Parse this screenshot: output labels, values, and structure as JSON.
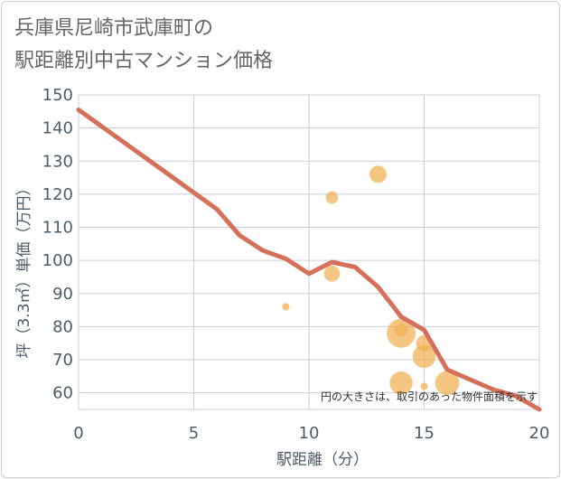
{
  "page": {
    "title_line1": "兵庫県尼崎市武庫町の",
    "title_line2": "駅距離別中古マンション価格"
  },
  "chart_data": {
    "type": "scatter",
    "title": "兵庫県尼崎市武庫町の駅距離別中古マンション価格",
    "xlabel": "駅距離（分）",
    "ylabel": "坪（3.3㎡）単価（万円）",
    "xlim": [
      0,
      20
    ],
    "ylim": [
      55,
      150
    ],
    "xticks": [
      0,
      5,
      10,
      15,
      20
    ],
    "yticks": [
      60,
      70,
      80,
      90,
      100,
      110,
      120,
      130,
      140,
      150
    ],
    "grid": true,
    "note": "円の大きさは、取引のあった物件面積を示す",
    "bubble_color": "#f0b050",
    "line_color": "#d5705a",
    "points": [
      {
        "x": 9,
        "y": 86,
        "size": 0.08
      },
      {
        "x": 11,
        "y": 119,
        "size": 0.3
      },
      {
        "x": 11,
        "y": 96,
        "size": 0.45
      },
      {
        "x": 13,
        "y": 126,
        "size": 0.5
      },
      {
        "x": 14,
        "y": 78,
        "size": 1.0
      },
      {
        "x": 14,
        "y": 79,
        "size": 0.3
      },
      {
        "x": 14,
        "y": 63,
        "size": 0.75
      },
      {
        "x": 15,
        "y": 75,
        "size": 0.45
      },
      {
        "x": 15,
        "y": 71,
        "size": 0.75
      },
      {
        "x": 15,
        "y": 62,
        "size": 0.08
      },
      {
        "x": 16,
        "y": 63,
        "size": 0.8
      }
    ],
    "series": [
      {
        "name": "trend",
        "type": "line",
        "x": [
          0,
          1,
          2,
          3,
          4,
          5,
          6,
          7,
          8,
          9,
          10,
          11,
          12,
          13,
          14,
          15,
          16,
          17,
          18,
          19,
          20
        ],
        "values": [
          145.5,
          140.5,
          135.5,
          130.5,
          125.5,
          120.5,
          115.5,
          107.5,
          103,
          100.5,
          96,
          99.5,
          98,
          92,
          83,
          79,
          67,
          64,
          61,
          59,
          55
        ]
      }
    ]
  }
}
